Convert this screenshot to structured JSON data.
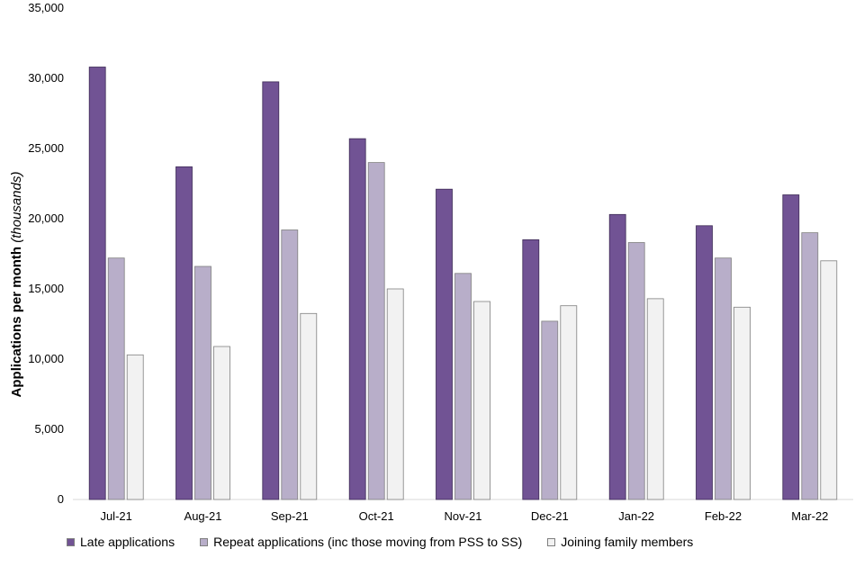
{
  "chart_data": {
    "type": "bar",
    "ylabel": "Applications per month",
    "ylabel_italic": "(thousands)",
    "ylim": [
      0,
      35000
    ],
    "yticks": [
      0,
      5000,
      10000,
      15000,
      20000,
      25000,
      30000,
      35000
    ],
    "ytick_labels": [
      "0",
      "5,000",
      "10,000",
      "15,000",
      "20,000",
      "25,000",
      "30,000",
      "35,000"
    ],
    "grid": false,
    "legend_position": "bottom",
    "categories": [
      "Jul-21",
      "Aug-21",
      "Sep-21",
      "Oct-21",
      "Nov-21",
      "Dec-21",
      "Jan-22",
      "Feb-22",
      "Mar-22"
    ],
    "series": [
      {
        "name": "Late applications",
        "color": "#715394",
        "values": [
          30800,
          23700,
          29750,
          25700,
          22100,
          18500,
          20300,
          19500,
          21700
        ]
      },
      {
        "name": "Repeat applications (inc those moving from PSS to SS)",
        "color": "#b8aec9",
        "values": [
          17200,
          16600,
          19200,
          24000,
          16100,
          12700,
          18300,
          17200,
          19000
        ]
      },
      {
        "name": "Joining family members",
        "color": "#f2f2f2",
        "values": [
          10300,
          10900,
          13250,
          15000,
          14100,
          13800,
          14300,
          13700,
          17000
        ]
      }
    ]
  }
}
